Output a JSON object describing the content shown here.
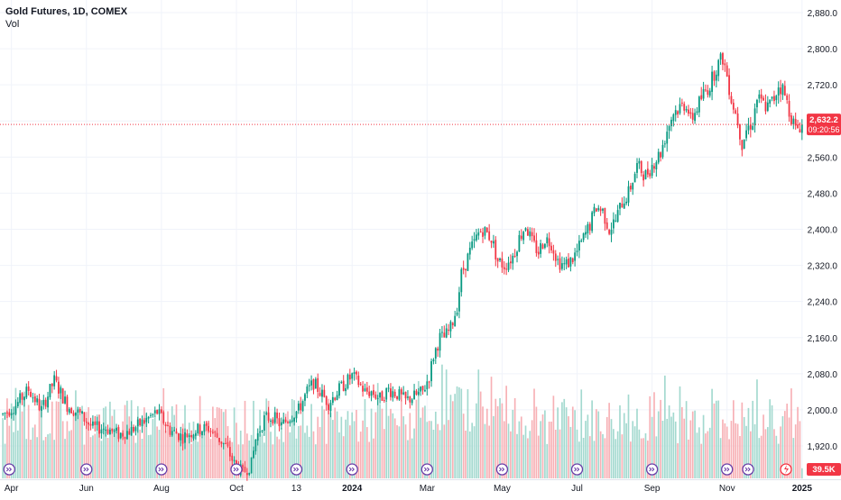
{
  "header": {
    "symbol_line": "Gold Futures, 1D, COMEX",
    "volume_label": "Vol"
  },
  "price_badge": {
    "price": "2,632.2",
    "countdown": "09:20:56",
    "color": "#f23645"
  },
  "volume_badge": {
    "value": "39.5K",
    "color": "#f23645"
  },
  "colors": {
    "up": "#089981",
    "down": "#f23645",
    "up_volume": "#a3d9cf",
    "down_volume": "#f7b0b5",
    "grid": "#f0f3fa",
    "axis_text": "#131722"
  },
  "event_marker_icon": "double-chevron-circle-icon",
  "last_event_icon": "lightning-circle-icon",
  "chart_data": {
    "type": "candlestick",
    "title": "Gold Futures, 1D, COMEX",
    "ylim": [
      1880,
      2920
    ],
    "y_ticks": [
      "2,880.0",
      "2,800.0",
      "2,720.0",
      "2,640.0",
      "2,560.0",
      "2,480.0",
      "2,400.0",
      "2,320.0",
      "2,240.0",
      "2,160.0",
      "2,080.0",
      "2,000.0",
      "1,920.0"
    ],
    "y_tick_values": [
      2880,
      2800,
      2720,
      2640,
      2560,
      2480,
      2400,
      2320,
      2240,
      2160,
      2080,
      2000,
      1920
    ],
    "x_ticks": [
      "Apr",
      "Jun",
      "Aug",
      "Oct",
      "13",
      "2024",
      "Mar",
      "May",
      "Jul",
      "Sep",
      "Nov",
      "2025"
    ],
    "x_tick_index": [
      4,
      39,
      74,
      109,
      137,
      163,
      198,
      233,
      268,
      303,
      338,
      373
    ],
    "grid": true,
    "last_price": 2632.2,
    "price_anchors": [
      [
        0,
        1990
      ],
      [
        6,
        2010
      ],
      [
        12,
        2045
      ],
      [
        18,
        2000
      ],
      [
        24,
        2065
      ],
      [
        30,
        2010
      ],
      [
        36,
        1990
      ],
      [
        42,
        1960
      ],
      [
        48,
        1960
      ],
      [
        54,
        1945
      ],
      [
        60,
        1955
      ],
      [
        66,
        1975
      ],
      [
        72,
        1995
      ],
      [
        78,
        1955
      ],
      [
        84,
        1940
      ],
      [
        90,
        1955
      ],
      [
        96,
        1960
      ],
      [
        100,
        1940
      ],
      [
        104,
        1920
      ],
      [
        108,
        1880
      ],
      [
        112,
        1860
      ],
      [
        116,
        1880
      ],
      [
        118,
        1935
      ],
      [
        122,
        1980
      ],
      [
        126,
        1985
      ],
      [
        130,
        1965
      ],
      [
        134,
        1985
      ],
      [
        138,
        2000
      ],
      [
        142,
        2040
      ],
      [
        145,
        2060
      ],
      [
        148,
        2040
      ],
      [
        152,
        2015
      ],
      [
        156,
        2040
      ],
      [
        160,
        2060
      ],
      [
        163,
        2075
      ],
      [
        166,
        2060
      ],
      [
        169,
        2040
      ],
      [
        172,
        2040
      ],
      [
        176,
        2025
      ],
      [
        180,
        2045
      ],
      [
        184,
        2035
      ],
      [
        188,
        2020
      ],
      [
        192,
        2030
      ],
      [
        196,
        2040
      ],
      [
        199,
        2075
      ],
      [
        201,
        2120
      ],
      [
        204,
        2160
      ],
      [
        206,
        2160
      ],
      [
        209,
        2180
      ],
      [
        212,
        2230
      ],
      [
        214,
        2300
      ],
      [
        218,
        2350
      ],
      [
        222,
        2390
      ],
      [
        224,
        2400
      ],
      [
        228,
        2380
      ],
      [
        231,
        2330
      ],
      [
        234,
        2320
      ],
      [
        238,
        2340
      ],
      [
        241,
        2380
      ],
      [
        244,
        2410
      ],
      [
        247,
        2370
      ],
      [
        250,
        2350
      ],
      [
        253,
        2380
      ],
      [
        256,
        2370
      ],
      [
        259,
        2330
      ],
      [
        262,
        2320
      ],
      [
        265,
        2330
      ],
      [
        268,
        2350
      ],
      [
        271,
        2380
      ],
      [
        274,
        2410
      ],
      [
        277,
        2450
      ],
      [
        280,
        2440
      ],
      [
        283,
        2400
      ],
      [
        286,
        2420
      ],
      [
        289,
        2460
      ],
      [
        292,
        2480
      ],
      [
        296,
        2540
      ],
      [
        300,
        2520
      ],
      [
        304,
        2550
      ],
      [
        307,
        2570
      ],
      [
        310,
        2620
      ],
      [
        313,
        2660
      ],
      [
        316,
        2670
      ],
      [
        319,
        2680
      ],
      [
        321,
        2640
      ],
      [
        324,
        2670
      ],
      [
        327,
        2700
      ],
      [
        330,
        2720
      ],
      [
        333,
        2760
      ],
      [
        336,
        2780
      ],
      [
        338,
        2740
      ],
      [
        340,
        2690
      ],
      [
        343,
        2640
      ],
      [
        345,
        2590
      ],
      [
        347,
        2620
      ],
      [
        350,
        2640
      ],
      [
        352,
        2690
      ],
      [
        354,
        2680
      ],
      [
        357,
        2670
      ],
      [
        360,
        2690
      ],
      [
        362,
        2720
      ],
      [
        364,
        2710
      ],
      [
        366,
        2680
      ],
      [
        368,
        2650
      ],
      [
        370,
        2620
      ],
      [
        372,
        2630
      ]
    ],
    "volume_ylim": [
      0,
      140
    ]
  }
}
